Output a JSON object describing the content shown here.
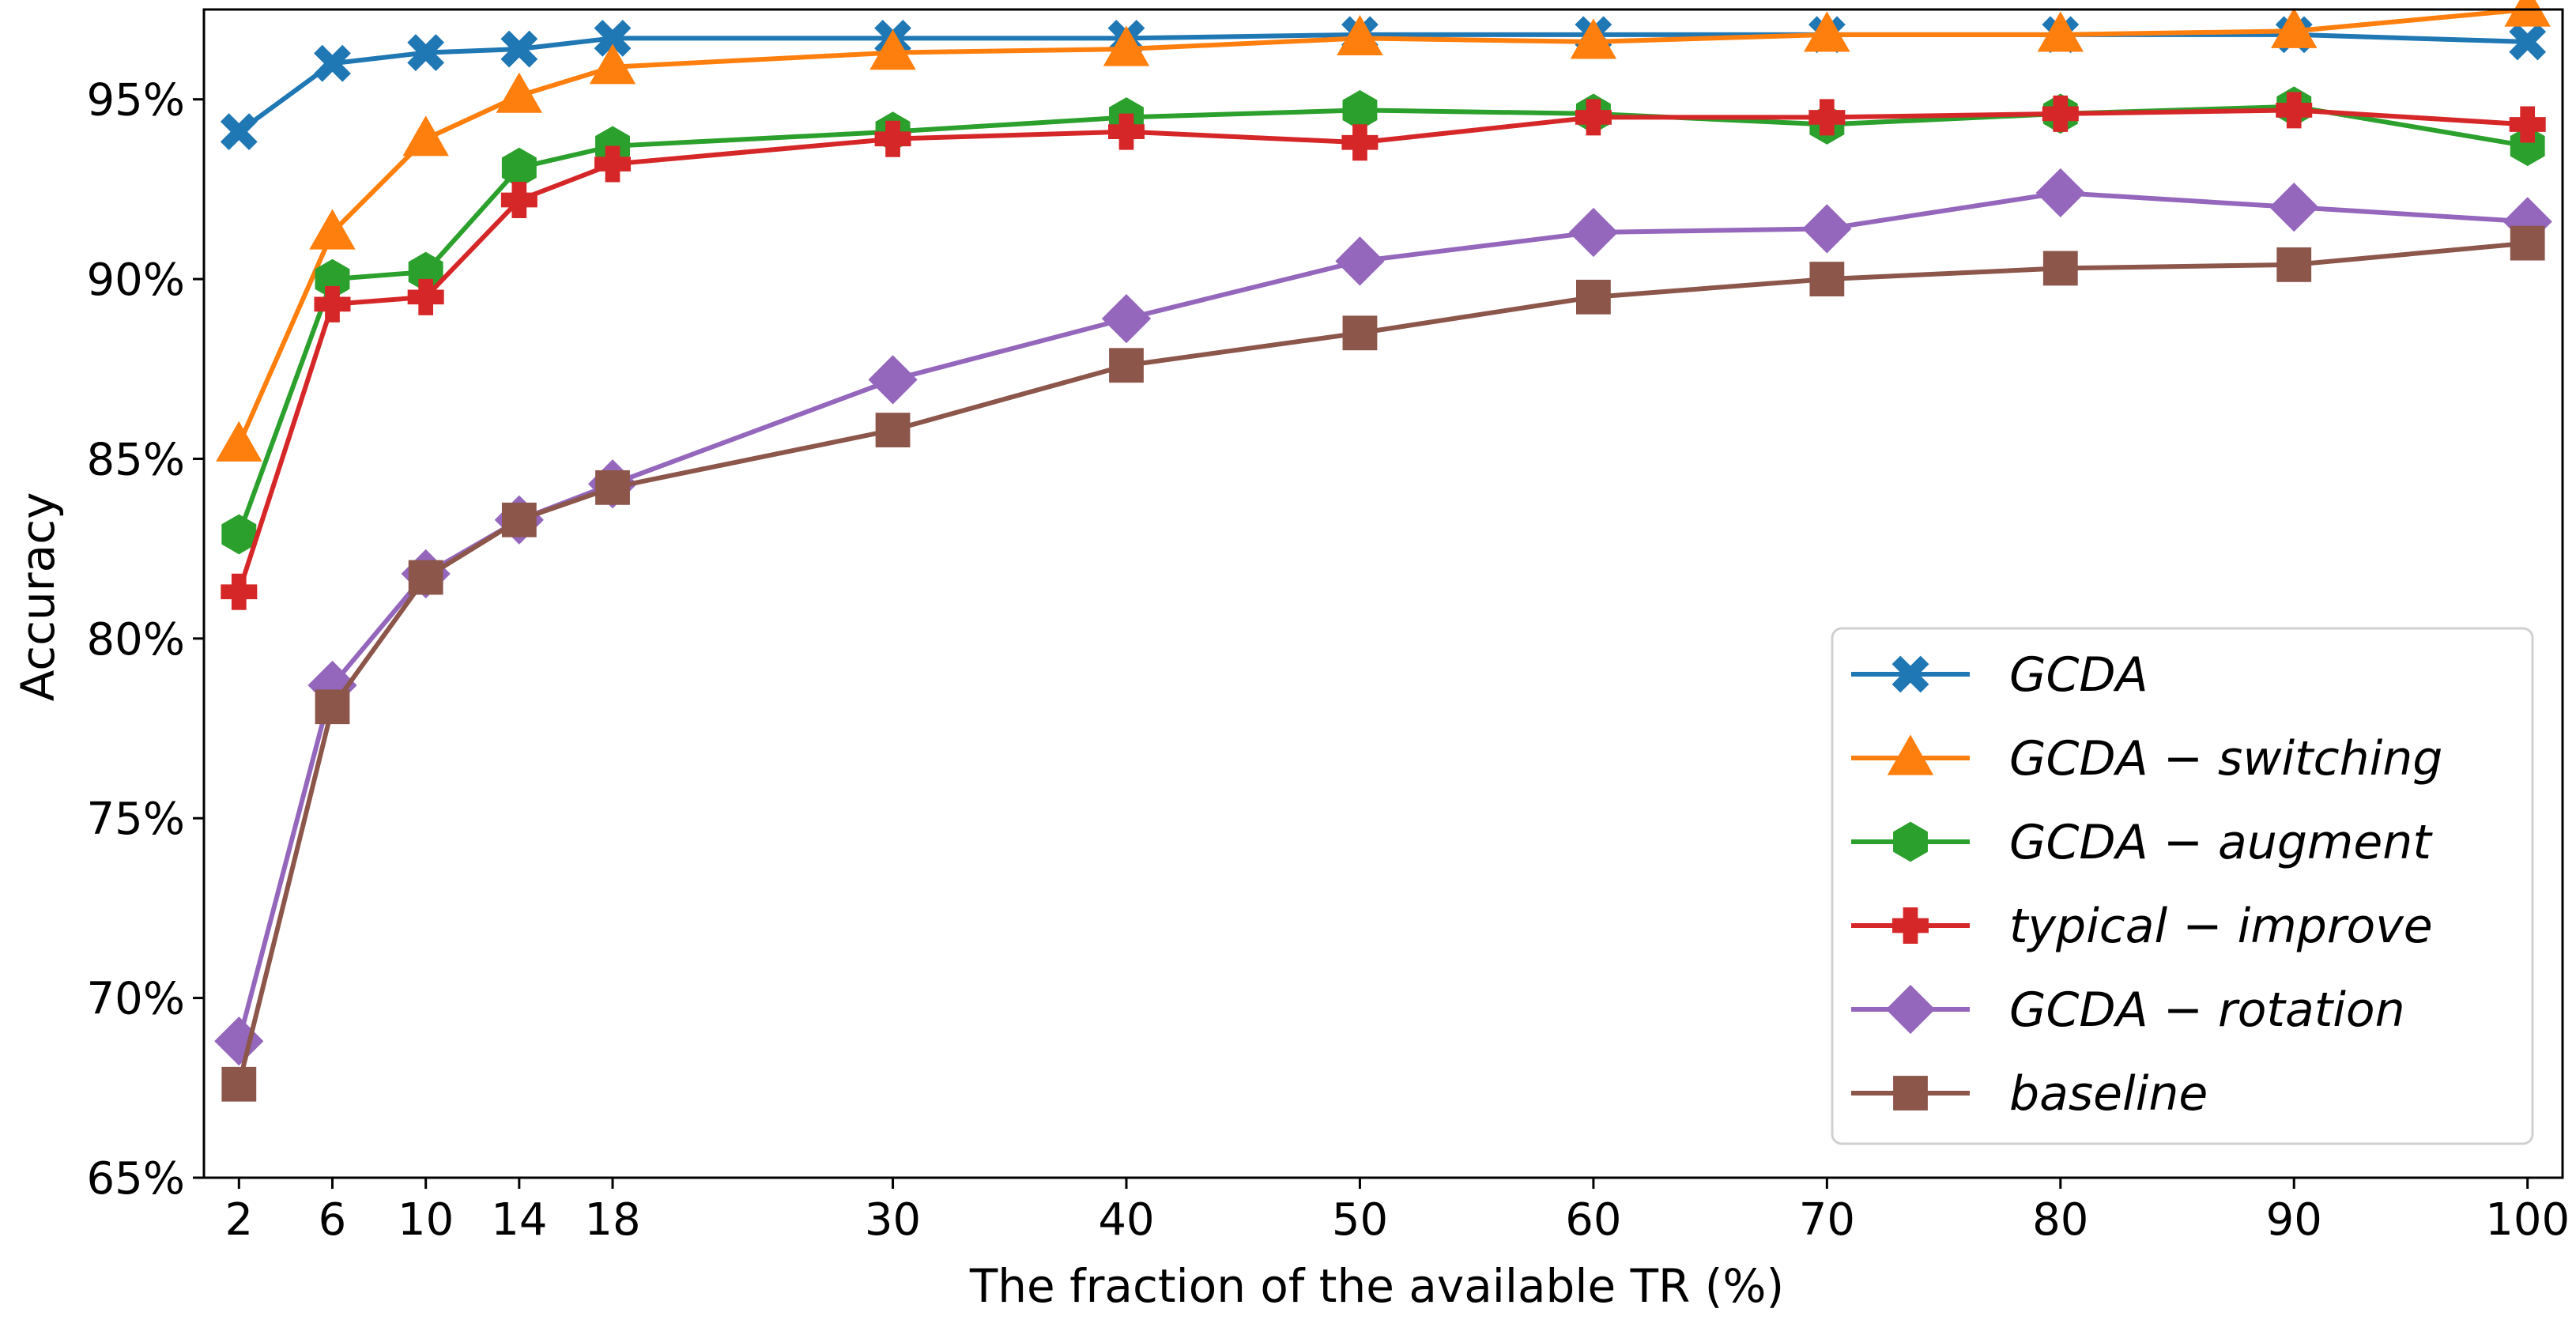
{
  "chart_data": {
    "type": "line",
    "title": "",
    "xlabel": "The fraction of the available TR (%)",
    "ylabel": "Accuracy",
    "x": [
      2,
      6,
      10,
      14,
      18,
      30,
      40,
      50,
      60,
      70,
      80,
      90,
      100
    ],
    "xticks": [
      "2",
      "6",
      "10",
      "14",
      "18",
      "30",
      "40",
      "50",
      "60",
      "70",
      "80",
      "90",
      "100"
    ],
    "ylim": [
      65,
      97.5
    ],
    "yticks": [
      65,
      70,
      75,
      80,
      85,
      90,
      95
    ],
    "ytick_labels": [
      "65%",
      "70%",
      "75%",
      "80%",
      "85%",
      "90%",
      "95%"
    ],
    "grid": false,
    "legend": "bottom-right",
    "series": [
      {
        "name": "GCDA",
        "color": "#1f77b4",
        "marker": "x-filled",
        "values": [
          94.1,
          96.0,
          96.3,
          96.4,
          96.7,
          96.7,
          96.7,
          96.8,
          96.8,
          96.8,
          96.8,
          96.8,
          96.6
        ]
      },
      {
        "name": "GCDA − switching",
        "color": "#ff7f0e",
        "marker": "triangle",
        "values": [
          85.4,
          91.3,
          93.9,
          95.1,
          95.9,
          96.3,
          96.4,
          96.7,
          96.6,
          96.8,
          96.8,
          96.9,
          97.5
        ]
      },
      {
        "name": "GCDA − augment",
        "color": "#2ca02c",
        "marker": "hexagon",
        "values": [
          82.9,
          90.0,
          90.2,
          93.1,
          93.7,
          94.1,
          94.5,
          94.7,
          94.6,
          94.3,
          94.6,
          94.8,
          93.7
        ]
      },
      {
        "name": "typical − improve",
        "color": "#d62728",
        "marker": "plus-filled",
        "values": [
          81.3,
          89.3,
          89.5,
          92.2,
          93.2,
          93.9,
          94.1,
          93.8,
          94.5,
          94.5,
          94.6,
          94.7,
          94.3
        ]
      },
      {
        "name": "GCDA − rotation",
        "color": "#9467bd",
        "marker": "diamond",
        "values": [
          68.8,
          78.7,
          81.8,
          83.3,
          84.3,
          87.2,
          88.9,
          90.5,
          91.3,
          91.4,
          92.4,
          92.0,
          91.6
        ]
      },
      {
        "name": "baseline",
        "color": "#8c564b",
        "marker": "square",
        "values": [
          67.6,
          78.1,
          81.7,
          83.3,
          84.2,
          85.8,
          87.6,
          88.5,
          89.5,
          90.0,
          90.3,
          90.4,
          91.0
        ]
      }
    ]
  }
}
